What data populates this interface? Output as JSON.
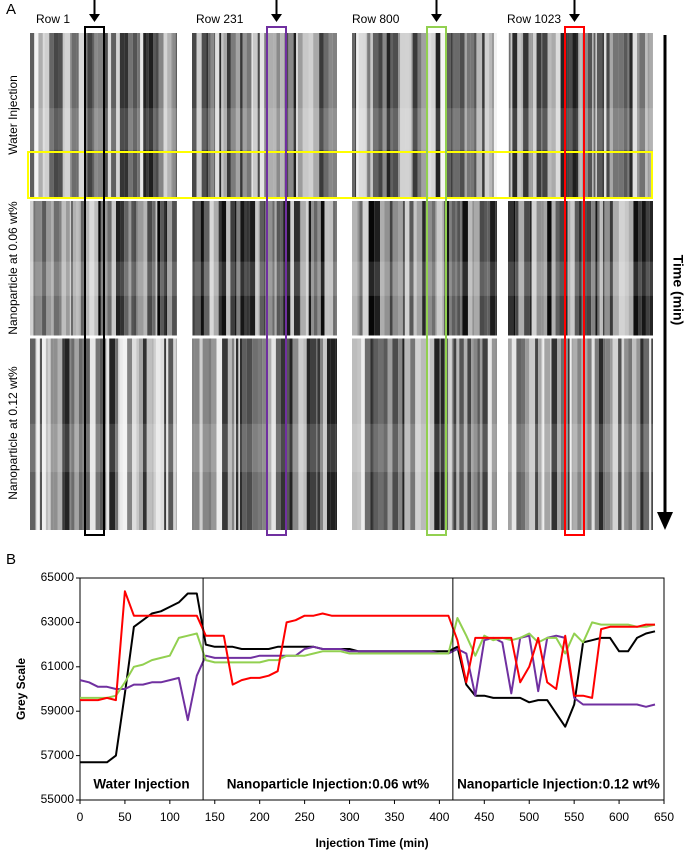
{
  "panel_a": {
    "label": "A",
    "columns": [
      "Row 1",
      "Row 231",
      "Row 800",
      "Row 1023"
    ],
    "rows": [
      "Water Injection",
      "Nanoparticle at 0.06 wt%",
      "Nanoparticle at 0.12 wt%"
    ],
    "axis_label": "Time (min)"
  },
  "chart_data": {
    "type": "line",
    "panel_label": "B",
    "xlabel": "Injection Time (min)",
    "ylabel": "Grey Scale",
    "x": [
      0,
      10,
      20,
      30,
      40,
      50,
      60,
      70,
      80,
      90,
      100,
      110,
      120,
      130,
      140,
      150,
      160,
      170,
      180,
      190,
      200,
      210,
      220,
      230,
      240,
      250,
      260,
      270,
      280,
      290,
      300,
      310,
      320,
      330,
      340,
      350,
      360,
      370,
      380,
      390,
      400,
      410,
      420,
      430,
      440,
      450,
      460,
      470,
      480,
      490,
      500,
      510,
      520,
      530,
      540,
      550,
      560,
      570,
      580,
      590,
      600,
      610,
      620,
      630,
      640
    ],
    "series": [
      {
        "color": "#000000",
        "values": [
          56700,
          56700,
          56700,
          56700,
          57000,
          59800,
          62800,
          63100,
          63400,
          63500,
          63700,
          63900,
          64300,
          64300,
          62000,
          61900,
          61900,
          61900,
          61800,
          61800,
          61800,
          61800,
          61900,
          61900,
          61900,
          61900,
          61900,
          61800,
          61800,
          61800,
          61800,
          61700,
          61700,
          61700,
          61700,
          61700,
          61700,
          61700,
          61700,
          61700,
          61700,
          61700,
          61900,
          60200,
          59700,
          59700,
          59600,
          59600,
          59600,
          59600,
          59400,
          59500,
          59500,
          58900,
          58300,
          59300,
          62100,
          62200,
          62300,
          62300,
          61700,
          61700,
          62300,
          62500,
          62600
        ]
      },
      {
        "color": "#7030a0",
        "values": [
          60400,
          60300,
          60100,
          60100,
          60000,
          60000,
          60200,
          60200,
          60300,
          60300,
          60400,
          60500,
          58600,
          60600,
          61500,
          61400,
          61400,
          61400,
          61400,
          61400,
          61500,
          61500,
          61500,
          61500,
          61500,
          61800,
          61900,
          61800,
          61800,
          61800,
          61700,
          61700,
          61700,
          61700,
          61700,
          61700,
          61700,
          61700,
          61700,
          61700,
          61600,
          61600,
          61800,
          61600,
          59700,
          62200,
          62300,
          62100,
          59800,
          62300,
          62400,
          59900,
          62300,
          62400,
          62300,
          59600,
          59300,
          59300,
          59300,
          59300,
          59300,
          59300,
          59300,
          59200,
          59300
        ]
      },
      {
        "color": "#92d050",
        "values": [
          59600,
          59600,
          59600,
          59600,
          59700,
          60300,
          61000,
          61100,
          61300,
          61400,
          61500,
          62300,
          62400,
          62500,
          61300,
          61200,
          61200,
          61200,
          61200,
          61200,
          61200,
          61300,
          61300,
          61500,
          61500,
          61500,
          61600,
          61700,
          61700,
          61700,
          61600,
          61600,
          61600,
          61600,
          61600,
          61600,
          61600,
          61600,
          61600,
          61600,
          61600,
          61600,
          63200,
          62400,
          61500,
          62400,
          62200,
          62300,
          62200,
          62300,
          62500,
          62100,
          62300,
          62300,
          61600,
          62500,
          62100,
          63000,
          62900,
          62900,
          62900,
          62900,
          62800,
          62800,
          62900
        ]
      },
      {
        "color": "#ff0000",
        "values": [
          59500,
          59500,
          59500,
          59600,
          59500,
          64400,
          63300,
          63300,
          63300,
          63300,
          63300,
          63300,
          63300,
          63300,
          62400,
          62400,
          62400,
          60200,
          60400,
          60500,
          60500,
          60600,
          60800,
          63000,
          63100,
          63300,
          63300,
          63400,
          63300,
          63300,
          63300,
          63300,
          63300,
          63300,
          63300,
          63300,
          63300,
          63300,
          63300,
          63300,
          63300,
          63300,
          62200,
          60300,
          62300,
          62300,
          62300,
          62300,
          62300,
          60300,
          61000,
          62300,
          60300,
          60000,
          62400,
          59700,
          59700,
          59600,
          62700,
          62800,
          62800,
          62800,
          62800,
          62900,
          62900
        ]
      }
    ],
    "xlim": [
      0,
      650
    ],
    "ylim": [
      55000,
      65000
    ],
    "xticks": [
      0,
      50,
      100,
      150,
      200,
      250,
      300,
      350,
      400,
      450,
      500,
      550,
      600,
      650
    ],
    "yticks": [
      55000,
      57000,
      59000,
      61000,
      63000,
      65000
    ],
    "vlines": [
      137,
      415
    ],
    "annotations": [
      "Water Injection",
      "Nanoparticle Injection:0.06 wt%",
      "Nanoparticle Injection:0.12 wt%"
    ]
  }
}
